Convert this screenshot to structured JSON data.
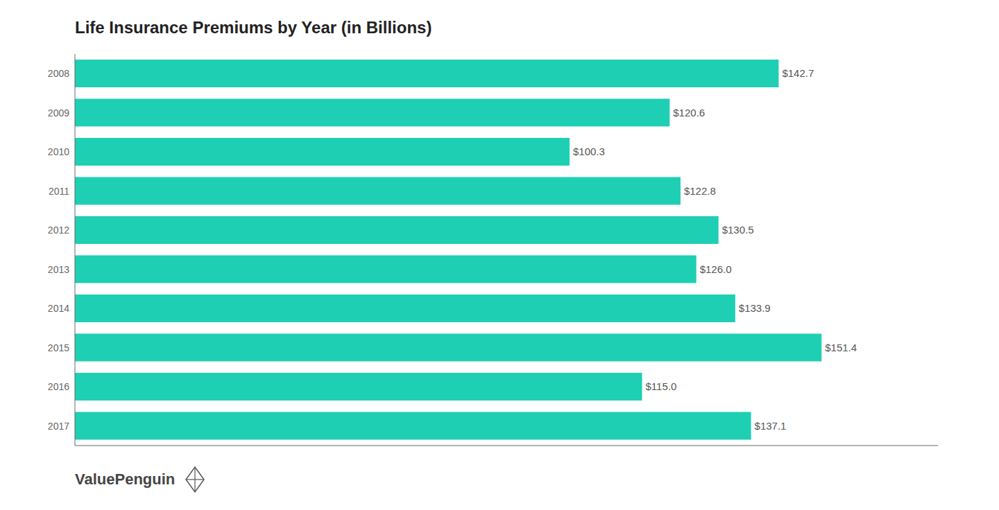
{
  "chart_data": {
    "type": "bar",
    "title": "Life Insurance Premiums by Year (in Billions)",
    "orientation": "horizontal",
    "categories": [
      "2008",
      "2009",
      "2010",
      "2011",
      "2012",
      "2013",
      "2014",
      "2015",
      "2016",
      "2017"
    ],
    "values": [
      142.7,
      120.6,
      100.3,
      122.8,
      130.5,
      126.0,
      133.9,
      151.4,
      115.0,
      137.1
    ],
    "value_labels": [
      "$142.7",
      "$120.6",
      "$100.3",
      "$122.8",
      "$130.5",
      "$126.0",
      "$133.9",
      "$151.4",
      "$115.0",
      "$137.1"
    ],
    "data_labels": true,
    "color": "#1ECFB3",
    "xlim": [
      0,
      175
    ],
    "tick_labels": "y",
    "grid": false,
    "annotations": [
      "ValuePenguin"
    ]
  }
}
